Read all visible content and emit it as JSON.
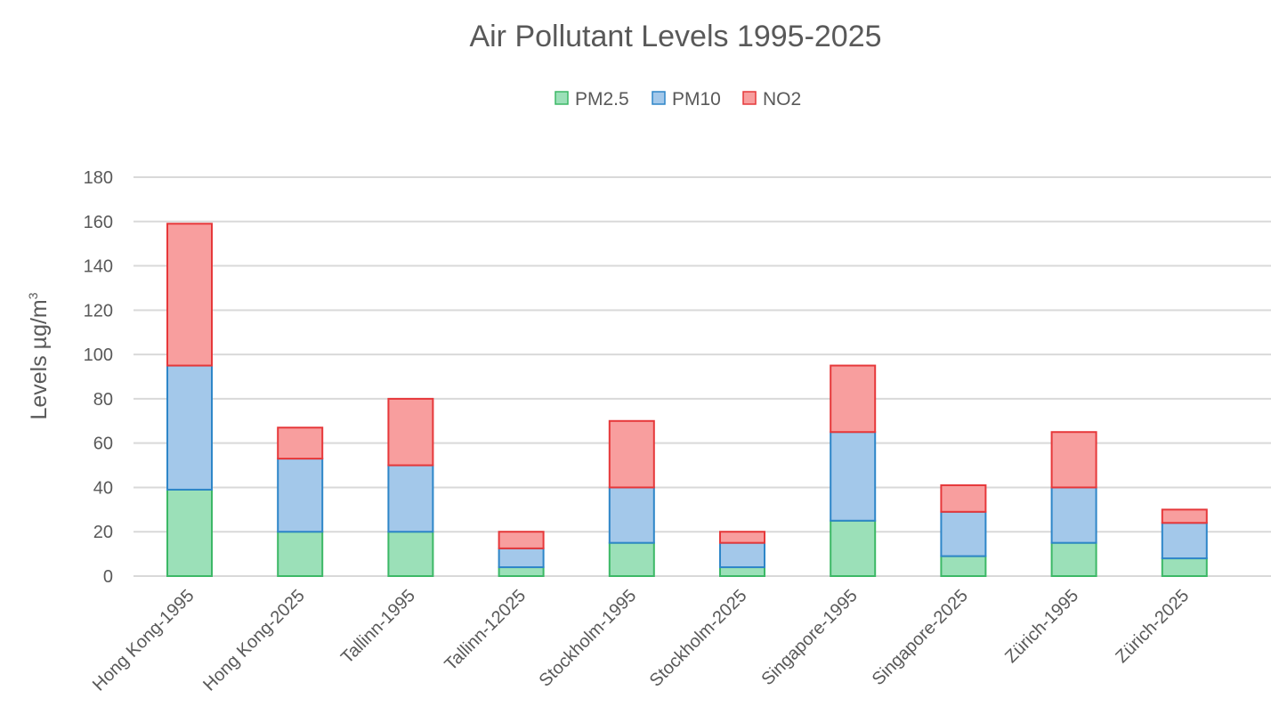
{
  "chart_data": {
    "type": "bar",
    "stacked": true,
    "title": "Air Pollutant Levels 1995-2025",
    "ylabel": "Levels µg/m",
    "ylabel_superscript": "3",
    "xlabel": "",
    "ylim": [
      0,
      180
    ],
    "yticks": [
      0,
      20,
      40,
      60,
      80,
      100,
      120,
      140,
      160,
      180
    ],
    "grid": true,
    "legend_position": "top-center",
    "categories": [
      "Hong Kong-1995",
      "Hong Kong-2025",
      "Tallinn-1995",
      "Tallinn-12025",
      "Stockholm-1995",
      "Stockholm-2025",
      "Singapore-1995",
      "Singapore-2025",
      "Zürich-1995",
      "Zürich-2025"
    ],
    "series": [
      {
        "name": "PM2.5",
        "fill": "#9be0b8",
        "stroke": "#3cb866",
        "values": [
          39,
          20,
          20,
          4,
          15,
          4,
          25,
          9,
          15,
          8
        ]
      },
      {
        "name": "PM10",
        "fill": "#a3c8ea",
        "stroke": "#2e86c8",
        "values": [
          56,
          33,
          30,
          8.5,
          25,
          11,
          40,
          20,
          25,
          16
        ]
      },
      {
        "name": "NO2",
        "fill": "#f89e9e",
        "stroke": "#e6383a",
        "values": [
          64,
          14,
          30,
          7.5,
          30,
          5,
          30,
          12,
          25,
          6
        ]
      }
    ]
  },
  "colors": {
    "grid": "#d9d9d9",
    "text": "#595959"
  }
}
